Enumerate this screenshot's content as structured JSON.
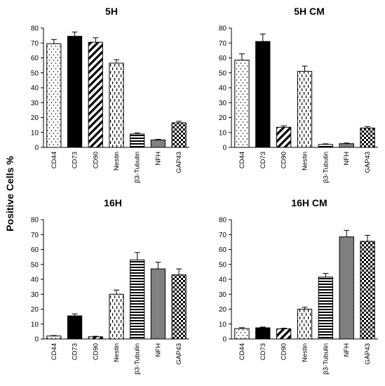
{
  "figure": {
    "ylabel": "Positive Cells %"
  },
  "chart_data": [
    {
      "type": "bar",
      "title": "5H",
      "categories": [
        "CD44",
        "CD73",
        "CD90",
        "Nestin",
        "β3-Tubulin",
        "NFH",
        "GAP43"
      ],
      "values": [
        69.5,
        74.5,
        70.5,
        56.5,
        9,
        5,
        16.5
      ],
      "errors": [
        2.8,
        2.8,
        3.0,
        2.3,
        0.7,
        0.4,
        1.0
      ],
      "ylim": [
        0,
        80
      ],
      "yticks": [
        0,
        10,
        20,
        30,
        40,
        50,
        60,
        70,
        80
      ],
      "grid": false
    },
    {
      "type": "bar",
      "title": "5H CM",
      "categories": [
        "CD44",
        "CD73",
        "CD90",
        "Nestin",
        "β3-Tubulin",
        "NFH",
        "GAP43"
      ],
      "values": [
        58.5,
        71,
        13.5,
        51,
        2,
        2.5,
        13
      ],
      "errors": [
        4.2,
        5.0,
        1.0,
        3.5,
        0.4,
        0.4,
        1.0
      ],
      "ylim": [
        0,
        80
      ],
      "yticks": [
        0,
        10,
        20,
        30,
        40,
        50,
        60,
        70,
        80
      ],
      "grid": false
    },
    {
      "type": "bar",
      "title": "16H",
      "categories": [
        "CD44",
        "CD73",
        "CD90",
        "Nestin",
        "β3-Tubulin",
        "NFH",
        "GAP43"
      ],
      "values": [
        2,
        15.5,
        1.5,
        30,
        53,
        47,
        43
      ],
      "errors": [
        0.3,
        1.3,
        0.3,
        2.8,
        5.0,
        4.5,
        4.0
      ],
      "ylim": [
        0,
        80
      ],
      "yticks": [
        0,
        10,
        20,
        30,
        40,
        50,
        60,
        70,
        80
      ],
      "grid": false
    },
    {
      "type": "bar",
      "title": "16H CM",
      "categories": [
        "CD44",
        "CD73",
        "CD90",
        "Nestin",
        "β3-Tubulin",
        "NFH",
        "GAP43"
      ],
      "values": [
        7,
        7.5,
        6.8,
        20,
        41.5,
        68.5,
        65.5
      ],
      "errors": [
        0.6,
        0.5,
        0.4,
        1.3,
        2.5,
        4.3,
        4.0
      ],
      "ylim": [
        0,
        80
      ],
      "yticks": [
        0,
        10,
        20,
        30,
        40,
        50,
        60,
        70,
        80
      ],
      "grid": false
    }
  ]
}
